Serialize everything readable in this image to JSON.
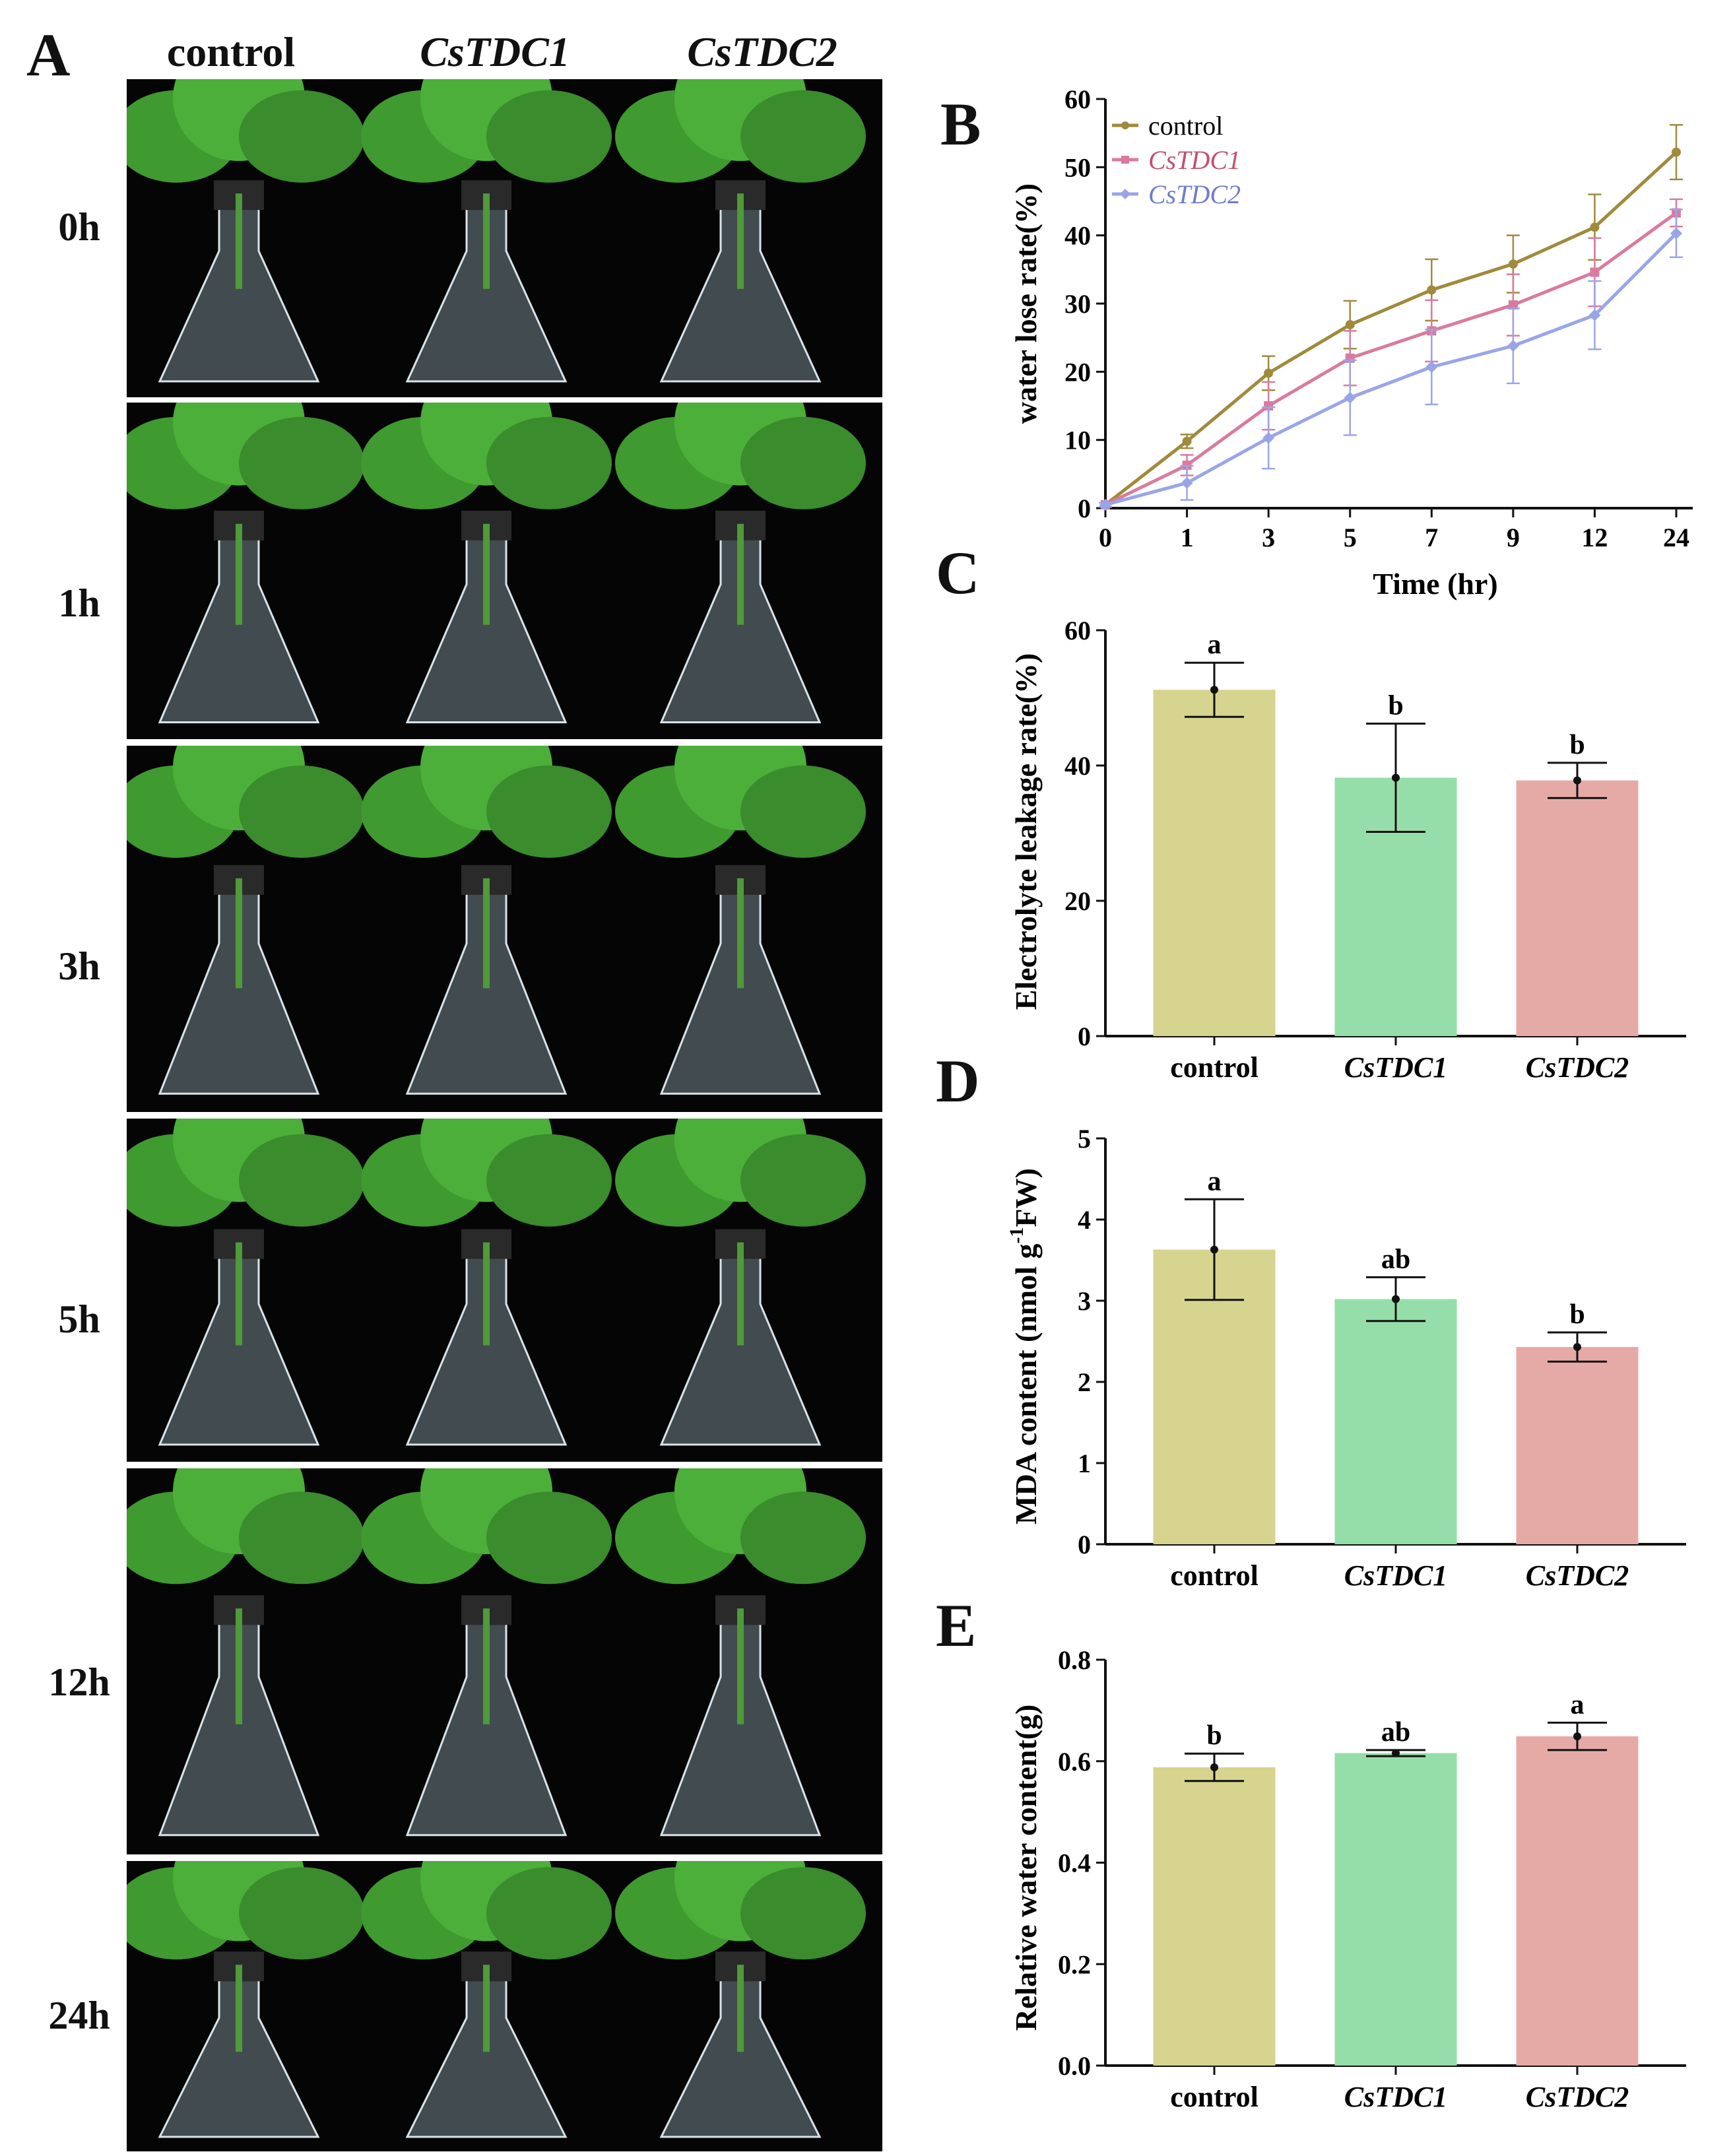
{
  "panelA": {
    "letter": "A",
    "columns": [
      "control",
      "CsTDC1",
      "CsTDC2"
    ],
    "rows": [
      "0h",
      "1h",
      "3h",
      "5h",
      "12h",
      "24h"
    ]
  },
  "colors": {
    "control": "#a08a3c",
    "CsTDC1": "#d97b9e",
    "CsTDC2": "#9aa5e8",
    "bar_control": "#d6d48f",
    "bar_CsTDC1": "#96dea9",
    "bar_CsTDC2": "#e6aaa6"
  },
  "chart_data": [
    {
      "id": "B",
      "letter": "B",
      "type": "line",
      "x": [
        "0",
        "1",
        "3",
        "5",
        "7",
        "9",
        "12",
        "24"
      ],
      "xlabel": "Time (hr)",
      "ylabel": "water lose rate(%)",
      "ylim": [
        0,
        60
      ],
      "yticks": [
        "0",
        "10",
        "20",
        "30",
        "40",
        "50",
        "60"
      ],
      "legend_position": "top-left",
      "series": [
        {
          "name": "control",
          "values": [
            0.5,
            9.8,
            19.8,
            26.9,
            32.0,
            35.8,
            41.2,
            52.2
          ],
          "errors": [
            0.3,
            1.0,
            2.5,
            3.5,
            4.5,
            4.2,
            4.8,
            4.0
          ]
        },
        {
          "name": "CsTDC1",
          "values": [
            0.5,
            6.3,
            15.0,
            22.0,
            26.0,
            29.8,
            34.6,
            43.3
          ],
          "errors": [
            0.3,
            1.5,
            3.5,
            4.0,
            4.5,
            4.5,
            5.0,
            2.0
          ]
        },
        {
          "name": "CsTDC2",
          "values": [
            0.5,
            3.7,
            10.3,
            16.2,
            20.7,
            23.8,
            28.3,
            40.3
          ],
          "errors": [
            0.3,
            2.5,
            4.5,
            5.5,
            5.5,
            5.5,
            5.0,
            3.5
          ]
        }
      ]
    },
    {
      "id": "C",
      "letter": "C",
      "type": "bar",
      "categories": [
        "control",
        "CsTDC1",
        "CsTDC2"
      ],
      "values": [
        51.2,
        38.2,
        37.8
      ],
      "errors": [
        4.0,
        8.0,
        2.6
      ],
      "significance": [
        "a",
        "b",
        "b"
      ],
      "ylabel": "Electrolyte leakage rate(%)",
      "ylim": [
        0,
        60
      ],
      "yticks": [
        "0",
        "20",
        "40",
        "60"
      ]
    },
    {
      "id": "D",
      "letter": "D",
      "type": "bar",
      "categories": [
        "control",
        "CsTDC1",
        "CsTDC2"
      ],
      "values": [
        3.63,
        3.02,
        2.43
      ],
      "errors": [
        0.62,
        0.27,
        0.18
      ],
      "significance": [
        "a",
        "ab",
        "b"
      ],
      "ylabel_main": "MDA content (nmol g",
      "ylabel_sup": "-1",
      "ylabel_end": "FW)",
      "ylim": [
        0,
        5
      ],
      "yticks": [
        "0",
        "1",
        "2",
        "3",
        "4",
        "5"
      ]
    },
    {
      "id": "E",
      "letter": "E",
      "type": "bar",
      "categories": [
        "control",
        "CsTDC1",
        "CsTDC2"
      ],
      "values": [
        0.588,
        0.616,
        0.649
      ],
      "errors": [
        0.027,
        0.006,
        0.027
      ],
      "significance": [
        "b",
        "ab",
        "a"
      ],
      "ylabel": "Relative water content(g)",
      "ylim": [
        0,
        0.8
      ],
      "yticks": [
        "0.0",
        "0.2",
        "0.4",
        "0.6",
        "0.8"
      ]
    }
  ]
}
